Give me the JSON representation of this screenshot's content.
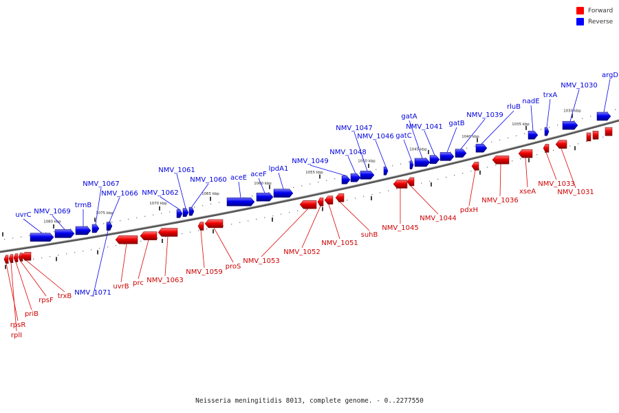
{
  "legend": {
    "forward": {
      "label": "Forward",
      "color": "#ff0000"
    },
    "reverse": {
      "label": "Reverse",
      "color": "#0000ff"
    }
  },
  "caption": "Neisseria meningitidis 8013, complete genome. - 0..2277550",
  "scale_labels": [
    "1080 kbp",
    "1075 kbp",
    "1070 kbp",
    "1065 kbp",
    "1060 kbp",
    "1055 kbp",
    "1050 kbp",
    "1045 kbp",
    "1040 kbp",
    "1035 kbp",
    "1030 kbp"
  ],
  "reverse_genes": [
    "uvrC",
    "NMV_1069",
    "trmB",
    "NMV_1067",
    "NMV_1066",
    "NMV_1062",
    "NMV_1061",
    "NMV_1060",
    "aceE",
    "aceF",
    "lpdA1",
    "NMV_1049",
    "NMV_1048",
    "NMV_1047",
    "NMV_1046",
    "gatC",
    "gatA",
    "NMV_1041",
    "gatB",
    "NMV_1039",
    "rluB",
    "nadE",
    "trxA",
    "NMV_1030",
    "argD",
    "NMV_1071"
  ],
  "forward_genes": [
    "rpsR",
    "rplI",
    "priB",
    "rpsF",
    "trxB",
    "uvrB",
    "prc",
    "NMV_1063",
    "NMV_1059",
    "proS",
    "NMV_1053",
    "NMV_1052",
    "NMV_1051",
    "suhB",
    "NMV_1045",
    "NMV_1044",
    "pdxH",
    "NMV_1036",
    "xseA",
    "NMV_1033",
    "NMV_1031"
  ]
}
